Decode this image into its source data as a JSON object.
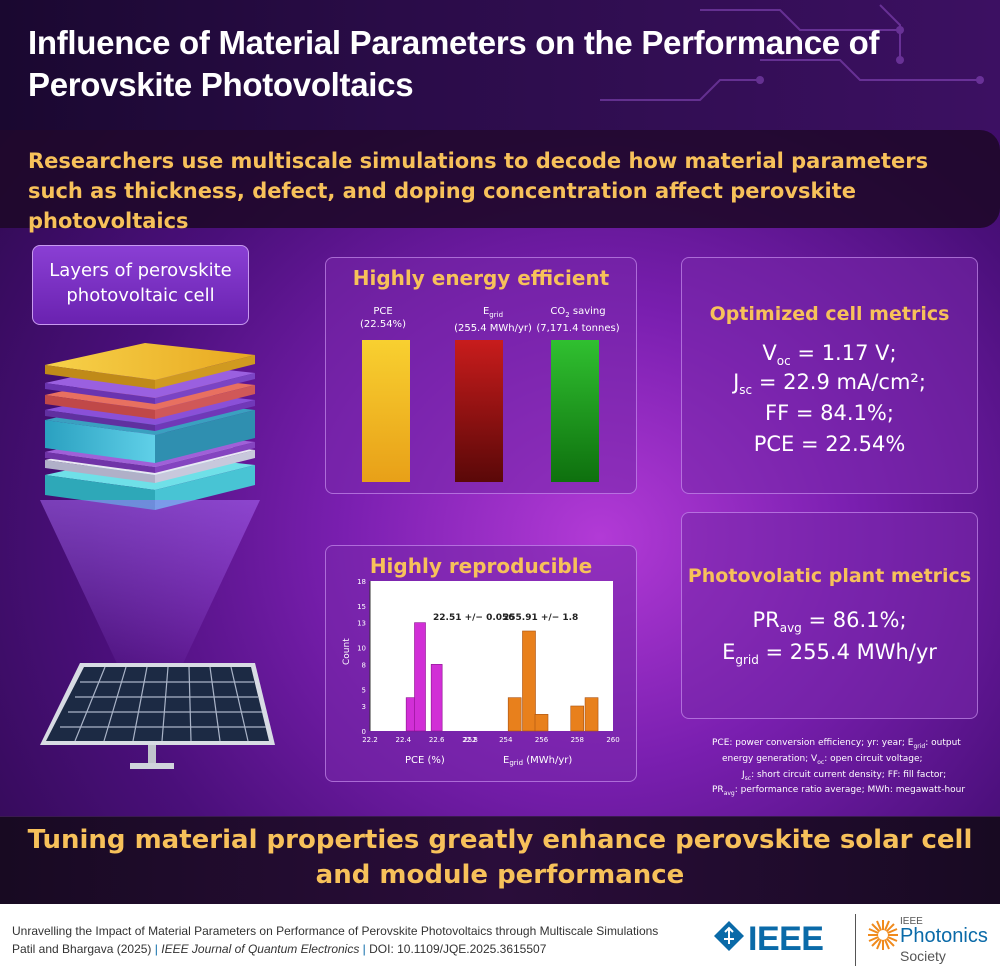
{
  "header": {
    "title": "Influence of Material Parameters on the Performance of Perovskite Photovoltaics",
    "subtitle": "Researchers use multiscale simulations to decode how material parameters such as thickness, defect, and doping concentration affect perovskite photovoltaics"
  },
  "layers": {
    "label": "Layers of perovskite photovoltaic cell"
  },
  "efficiency": {
    "title": "Highly energy efficient",
    "bars": [
      {
        "label": "PCE",
        "value_text": "(22.54%)",
        "color": "#f2c21c"
      },
      {
        "label": "E",
        "sub": "grid",
        "value_text": "(255.4 MWh/yr)",
        "color": "#a01818"
      },
      {
        "label": "CO",
        "sub": "2",
        "label_suffix": " saving",
        "value_text": "(7,171.4 tonnes)",
        "color": "#28b028"
      }
    ]
  },
  "reproducible": {
    "title": "Highly reproducible",
    "ylabel": "Count",
    "xlabel_left": "PCE (%)",
    "xlabel_right_main": "E",
    "xlabel_right_sub": "grid",
    "xlabel_right_unit": " (MWh/yr)",
    "annotation_left": "22.51 +/− 0.056",
    "annotation_right": "255.91 +/− 1.8"
  },
  "chart_data": {
    "type": "bar",
    "ylim": [
      0,
      18
    ],
    "yticks": [
      0,
      3,
      5,
      8,
      10,
      13,
      15,
      18
    ],
    "xticks": [
      "22.2",
      "22.4",
      "22.6",
      "22.8",
      "252",
      "254",
      "256",
      "258",
      "260"
    ],
    "series": [
      {
        "x": [
          22.45,
          22.5,
          22.6
        ],
        "values": [
          4,
          13,
          8
        ],
        "color": "#d12fd6"
      },
      {
        "x": [
          254.5,
          255.3,
          256,
          258,
          258.8
        ],
        "values": [
          4,
          12,
          2,
          3,
          4
        ],
        "color": "#e8801c"
      }
    ]
  },
  "metrics": {
    "title": "Optimized cell metrics",
    "lines": [
      {
        "main": "V",
        "sub": "oc",
        "rest": " = 1.17 V;"
      },
      {
        "main": "J",
        "sub": "sc",
        "rest": " = 22.9 mA/cm²;"
      },
      {
        "main": "FF = 84.1%;",
        "sub": "",
        "rest": ""
      },
      {
        "main": "PCE = 22.54%",
        "sub": "",
        "rest": ""
      }
    ]
  },
  "plant": {
    "title": "Photovolatic plant metrics",
    "lines": [
      {
        "main": "PR",
        "sub": "avg",
        "rest": " = 86.1%;"
      },
      {
        "main": "E",
        "sub": "grid",
        "rest": " = 255.4 MWh/yr"
      }
    ]
  },
  "legend": {
    "l1a": "PCE: power conversion efficiency; yr: year; E",
    "l1sub": "grid",
    "l1b": ": output",
    "l2a": "energy generation; V",
    "l2sub": "oc",
    "l2b": ": open circuit voltage;",
    "l3a": "J",
    "l3sub": "sc",
    "l3b": ": short circuit current density; FF: fill factor;",
    "l4a": "PR",
    "l4sub": "avg",
    "l4b": ": performance ratio average; MWh: megawatt-hour"
  },
  "conclusion": "Tuning material properties greatly enhance perovskite solar cell and module performance",
  "footer": {
    "cite_line1": "Unravelling the Impact of Material Parameters on Performance of Perovskite Photovoltaics through Multiscale Simulations",
    "authors": "Patil and Bhargava (2025)",
    "journal": "IEEE Journal of Quantum Electronics",
    "doi": "DOI: 10.1109/JQE.2025.3615507",
    "ieee": "IEEE",
    "photonics_top": "IEEE",
    "photonics_mid": "Photonics",
    "photonics_bot": "Society"
  }
}
